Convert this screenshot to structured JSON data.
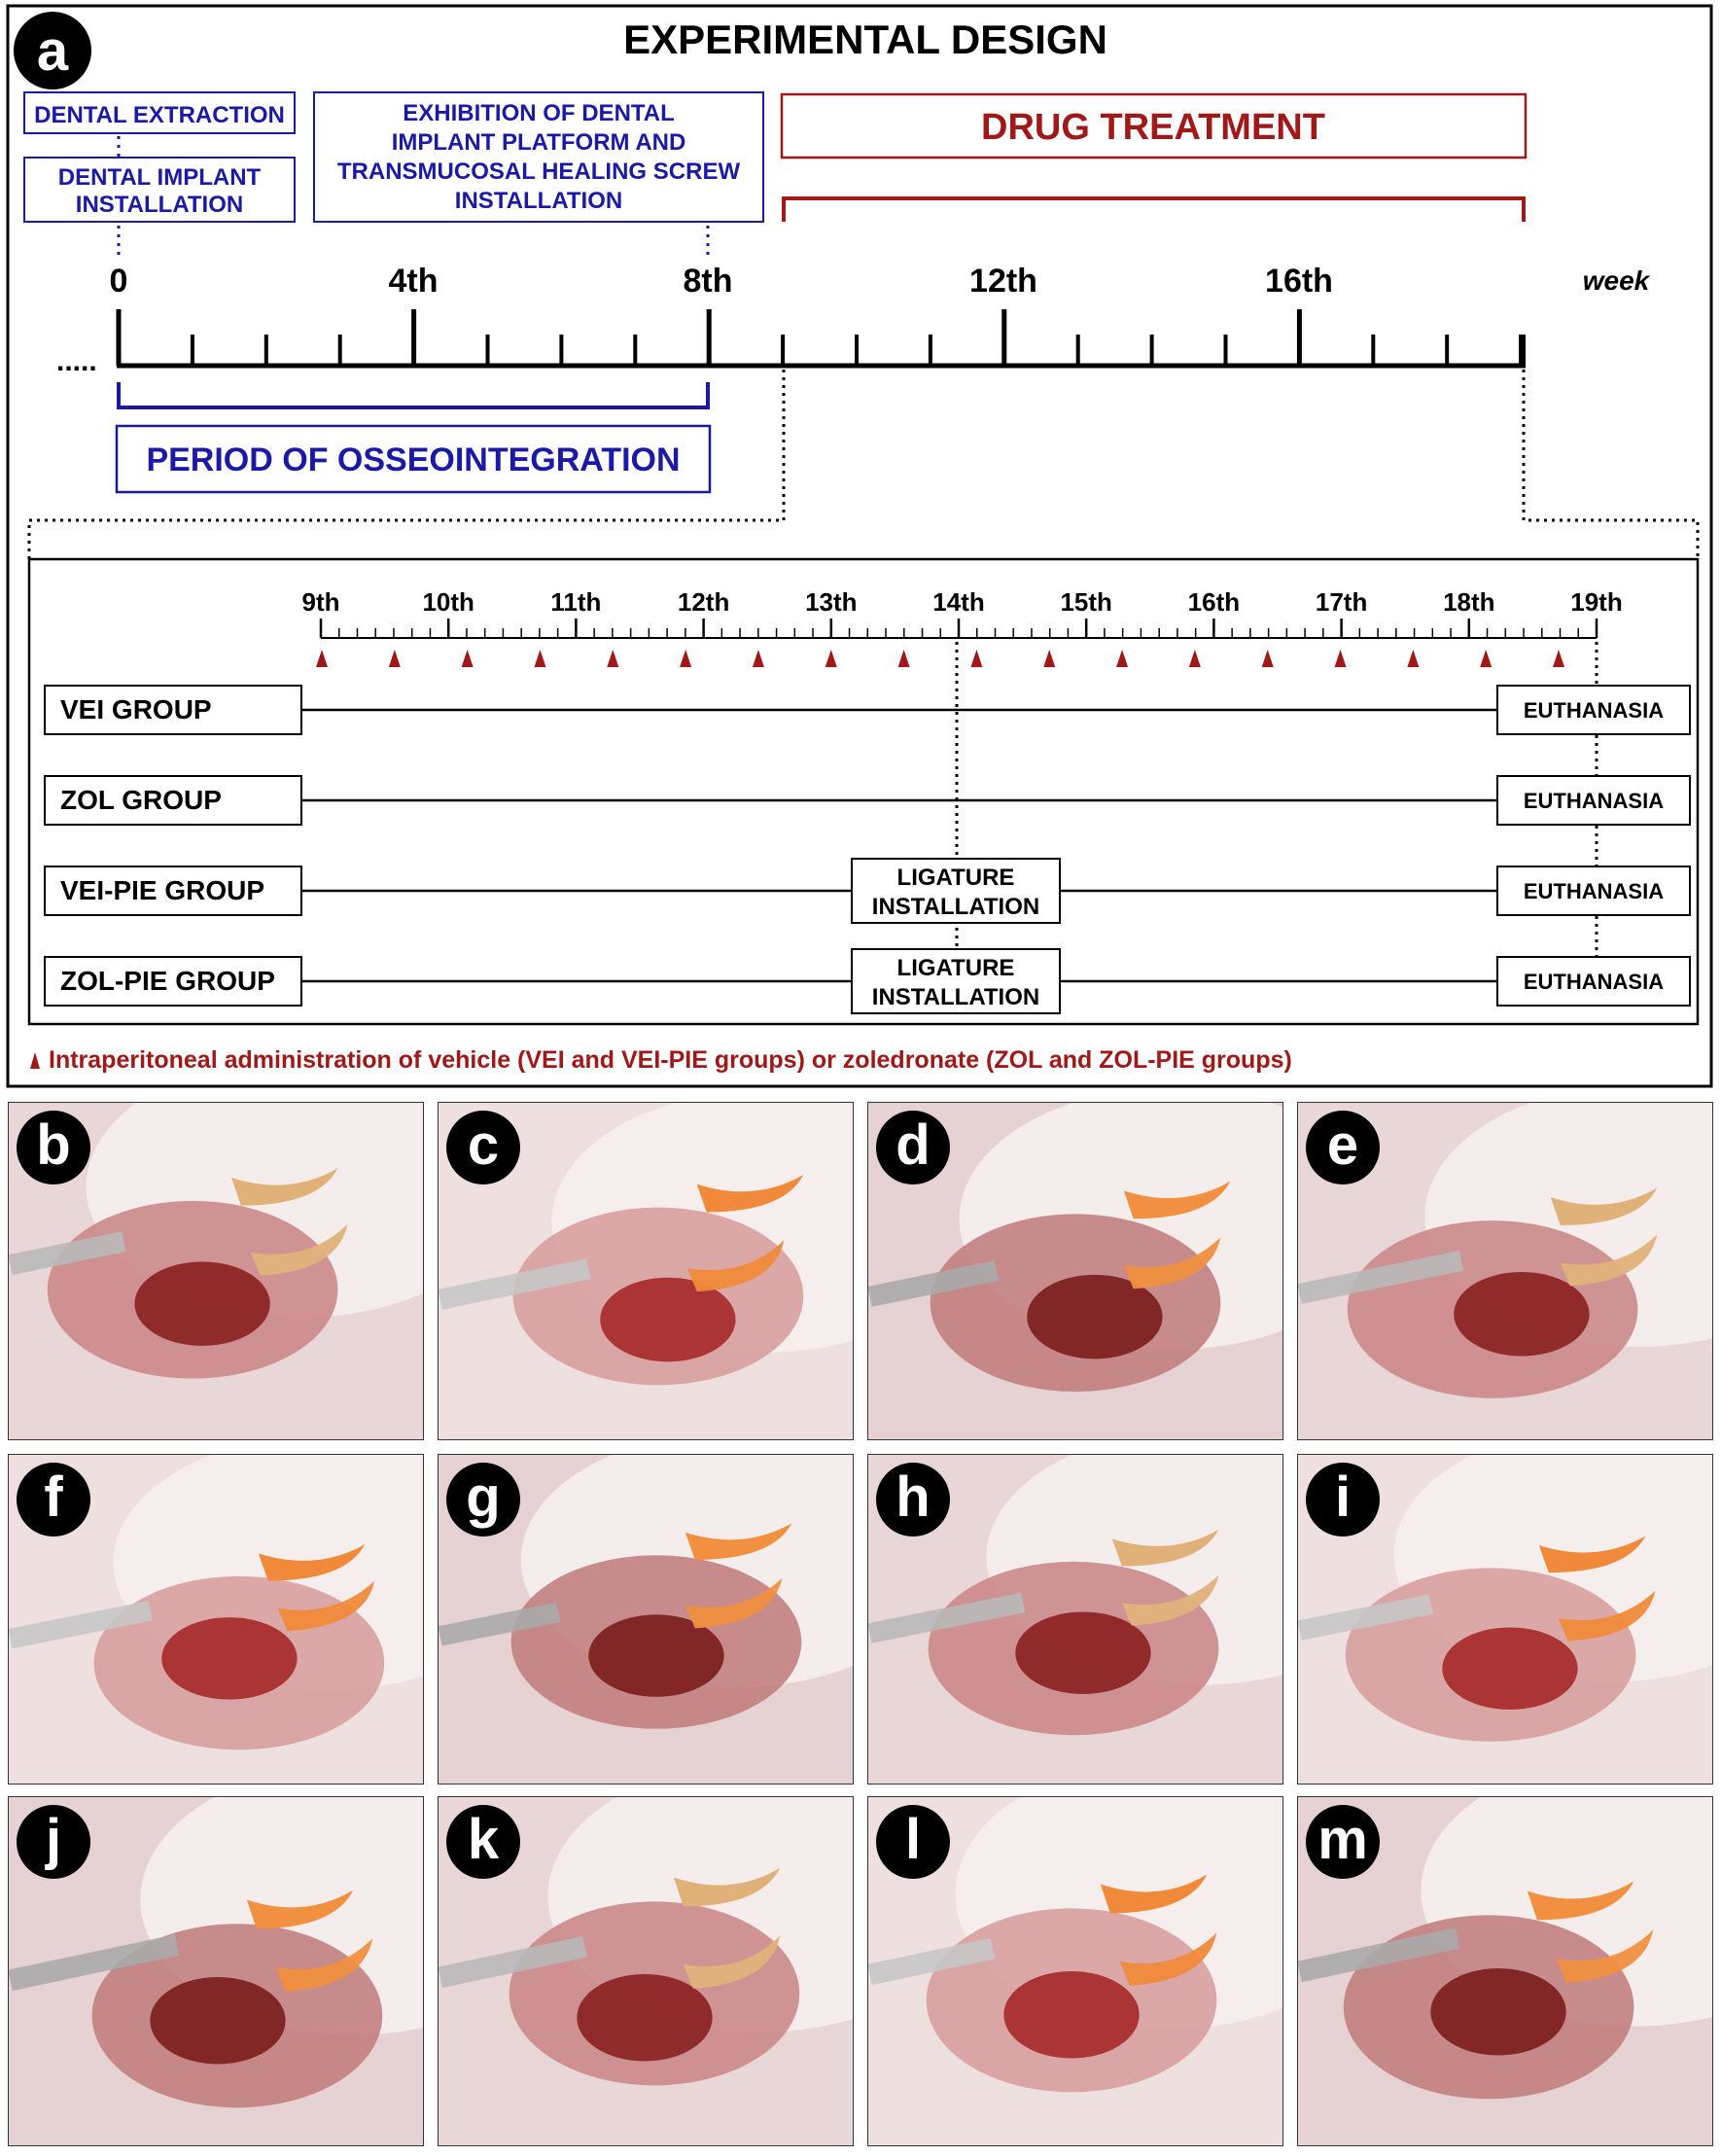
{
  "panel_a": {
    "label": "a",
    "title": "EXPERIMENTAL DESIGN",
    "boxes": {
      "dental_extraction": "DENTAL EXTRACTION",
      "implant_installation": [
        "DENTAL IMPLANT",
        "INSTALLATION"
      ],
      "exhibition": [
        "EXHIBITION OF DENTAL",
        "IMPLANT PLATFORM AND",
        "TRANSMUCOSAL HEALING SCREW",
        "INSTALLATION"
      ],
      "drug_treatment": "DRUG TREATMENT",
      "osseointegration": "PERIOD OF OSSEOINTEGRATION"
    },
    "main_timeline": {
      "labels": [
        "0",
        "4th",
        "8th",
        "12th",
        "16th"
      ],
      "unit": "week",
      "prefix": "....."
    },
    "detail": {
      "week_labels": [
        "9th",
        "10th",
        "11th",
        "12th",
        "13th",
        "14th",
        "15th",
        "16th",
        "17th",
        "18th",
        "19th"
      ],
      "groups": [
        {
          "name": "VEI GROUP",
          "ligature": false
        },
        {
          "name": "ZOL GROUP",
          "ligature": false
        },
        {
          "name": "VEI-PIE GROUP",
          "ligature": true
        },
        {
          "name": "ZOL-PIE GROUP",
          "ligature": true
        }
      ],
      "euthanasia": "EUTHANASIA",
      "ligature": [
        "LIGATURE",
        "INSTALLATION"
      ],
      "legend": "Intraperitoneal administration of vehicle (VEI and VEI-PIE groups) or zoledronate (ZOL and ZOL-PIE groups)"
    },
    "colors": {
      "blue": "#1a1aa6",
      "red": "#a01818",
      "black": "#000000"
    }
  },
  "photos": [
    "b",
    "c",
    "d",
    "e",
    "f",
    "g",
    "h",
    "i",
    "j",
    "k",
    "l",
    "m"
  ]
}
